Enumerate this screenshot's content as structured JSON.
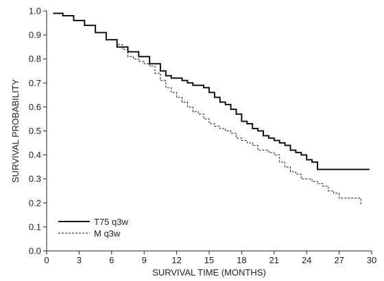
{
  "chart_data": {
    "type": "line",
    "title": "",
    "xlabel": "SURVIVAL TIME (MONTHS)",
    "ylabel": "SURVIVAL PROBABILITY",
    "xlim": [
      0,
      30
    ],
    "ylim": [
      0.0,
      1.0
    ],
    "x_ticks": [
      "0",
      "3",
      "6",
      "9",
      "12",
      "15",
      "18",
      "21",
      "24",
      "27",
      "30"
    ],
    "y_ticks": [
      "0.0",
      "0.1",
      "0.2",
      "0.3",
      "0.4",
      "0.5",
      "0.6",
      "0.7",
      "0.8",
      "0.9",
      "1.0"
    ],
    "grid": false,
    "legend_position": "bottom-left",
    "series": [
      {
        "name": "T75 q3w",
        "style": "solid",
        "color": "#111111",
        "x": [
          0.6,
          1.5,
          2.5,
          3.5,
          4.5,
          5.5,
          6.5,
          7.5,
          8.5,
          9.5,
          10.5,
          11.0,
          11.5,
          12.0,
          12.5,
          13.0,
          13.5,
          14.0,
          14.5,
          15.0,
          15.5,
          16.0,
          16.5,
          17.0,
          17.5,
          18.0,
          18.5,
          19.0,
          19.5,
          20.0,
          20.5,
          21.0,
          21.5,
          22.0,
          22.5,
          23.0,
          23.5,
          24.0,
          24.5,
          25.0,
          26.0,
          27.0,
          28.0,
          29.0,
          29.8
        ],
        "y": [
          0.99,
          0.98,
          0.96,
          0.94,
          0.91,
          0.88,
          0.85,
          0.83,
          0.81,
          0.78,
          0.75,
          0.73,
          0.72,
          0.72,
          0.71,
          0.7,
          0.69,
          0.69,
          0.68,
          0.66,
          0.64,
          0.62,
          0.61,
          0.59,
          0.57,
          0.54,
          0.53,
          0.51,
          0.5,
          0.48,
          0.47,
          0.46,
          0.45,
          0.44,
          0.42,
          0.41,
          0.4,
          0.38,
          0.37,
          0.34,
          0.34,
          0.34,
          0.34,
          0.34,
          0.34
        ]
      },
      {
        "name": "M q3w",
        "style": "dashed",
        "color": "#111111",
        "x": [
          0.6,
          1.5,
          2.5,
          3.5,
          4.5,
          5.5,
          6.5,
          7.0,
          7.5,
          8.0,
          8.5,
          9.0,
          9.5,
          10.0,
          10.5,
          11.0,
          11.5,
          12.0,
          12.5,
          13.0,
          13.5,
          14.0,
          14.5,
          15.0,
          15.5,
          16.0,
          16.5,
          17.0,
          17.5,
          18.0,
          18.5,
          19.0,
          19.5,
          20.0,
          20.5,
          21.0,
          21.5,
          22.0,
          22.5,
          23.0,
          23.5,
          24.0,
          24.5,
          25.0,
          25.5,
          26.0,
          26.5,
          27.0,
          28.0,
          29.0
        ],
        "y": [
          0.99,
          0.98,
          0.96,
          0.94,
          0.91,
          0.88,
          0.86,
          0.84,
          0.81,
          0.8,
          0.79,
          0.78,
          0.77,
          0.74,
          0.71,
          0.68,
          0.66,
          0.64,
          0.62,
          0.6,
          0.58,
          0.57,
          0.55,
          0.53,
          0.52,
          0.51,
          0.5,
          0.49,
          0.47,
          0.46,
          0.45,
          0.44,
          0.42,
          0.42,
          0.41,
          0.4,
          0.37,
          0.35,
          0.33,
          0.32,
          0.3,
          0.3,
          0.29,
          0.28,
          0.27,
          0.25,
          0.24,
          0.22,
          0.22,
          0.19
        ]
      }
    ]
  }
}
